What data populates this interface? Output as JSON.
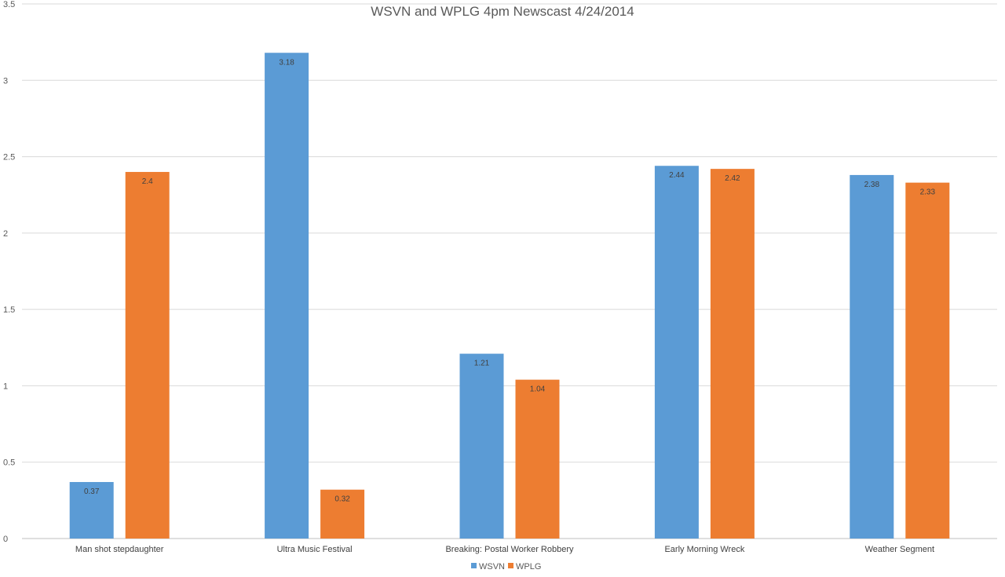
{
  "chart_data": {
    "type": "bar",
    "title": "WSVN and WPLG 4pm Newscast 4/24/2014",
    "xlabel": "",
    "ylabel": "",
    "ylim": [
      0,
      3.5
    ],
    "yticks": [
      "0",
      "0.5",
      "1",
      "1.5",
      "2",
      "2.5",
      "3",
      "3.5"
    ],
    "grid": true,
    "legend_position": "bottom",
    "categories": [
      "Man shot stepdaughter",
      "Ultra Music Festival",
      "Breaking: Postal Worker Robbery",
      "Early Morning Wreck",
      "Weather Segment"
    ],
    "series": [
      {
        "name": "WSVN",
        "color": "#5b9bd5",
        "values": [
          0.37,
          3.18,
          1.21,
          2.44,
          2.38
        ],
        "labels": [
          "0.37",
          "3.18",
          "1.21",
          "2.44",
          "2.38"
        ]
      },
      {
        "name": "WPLG",
        "color": "#ed7d31",
        "values": [
          2.4,
          0.32,
          1.04,
          2.42,
          2.33
        ],
        "labels": [
          "2.4",
          "0.32",
          "1.04",
          "2.42",
          "2.33"
        ]
      }
    ]
  }
}
